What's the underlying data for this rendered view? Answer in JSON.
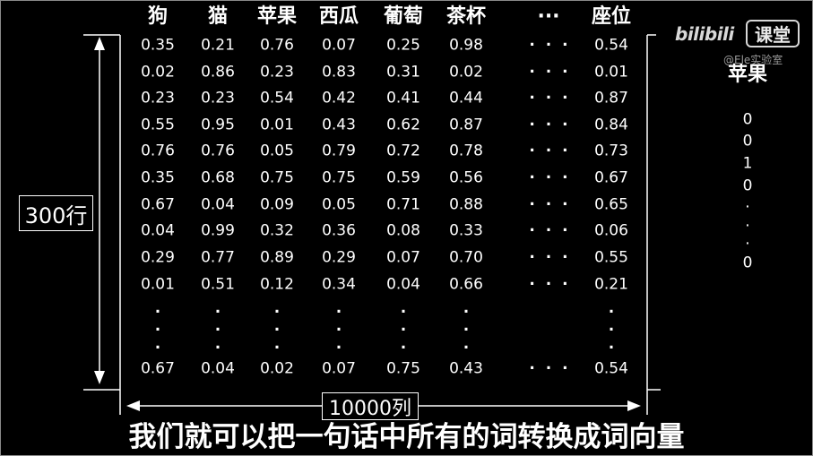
{
  "watermark": {
    "brand": "bilibili",
    "brand_suffix": "课堂",
    "author": "@Ele实验室"
  },
  "matrix": {
    "columns": [
      "狗",
      "猫",
      "苹果",
      "西瓜",
      "葡萄",
      "茶杯",
      "···",
      "座位"
    ],
    "rows": [
      [
        "0.35",
        "0.21",
        "0.76",
        "0.07",
        "0.25",
        "0.98",
        "· · ·",
        "0.54"
      ],
      [
        "0.02",
        "0.86",
        "0.23",
        "0.83",
        "0.31",
        "0.02",
        "· · ·",
        "0.01"
      ],
      [
        "0.23",
        "0.23",
        "0.54",
        "0.42",
        "0.41",
        "0.44",
        "· · ·",
        "0.87"
      ],
      [
        "0.55",
        "0.95",
        "0.01",
        "0.43",
        "0.62",
        "0.87",
        "· · ·",
        "0.84"
      ],
      [
        "0.76",
        "0.76",
        "0.05",
        "0.79",
        "0.72",
        "0.78",
        "· · ·",
        "0.73"
      ],
      [
        "0.35",
        "0.68",
        "0.75",
        "0.75",
        "0.59",
        "0.56",
        "· · ·",
        "0.67"
      ],
      [
        "0.67",
        "0.04",
        "0.09",
        "0.05",
        "0.71",
        "0.88",
        "· · ·",
        "0.65"
      ],
      [
        "0.04",
        "0.99",
        "0.32",
        "0.36",
        "0.08",
        "0.33",
        "· · ·",
        "0.06"
      ],
      [
        "0.29",
        "0.77",
        "0.89",
        "0.29",
        "0.07",
        "0.70",
        "· · ·",
        "0.55"
      ],
      [
        "0.01",
        "0.51",
        "0.12",
        "0.34",
        "0.04",
        "0.66",
        "· · ·",
        "0.21"
      ]
    ],
    "row_ellipsis": "·",
    "last_row": [
      "0.67",
      "0.04",
      "0.02",
      "0.07",
      "0.75",
      "0.43",
      "· · ·",
      "0.54"
    ]
  },
  "dimensions": {
    "rows_label": "300行",
    "cols_label": "10000列"
  },
  "word_vector": {
    "word": "苹果",
    "values": [
      "0",
      "0",
      "1",
      "0",
      "·",
      "·",
      "·",
      "0"
    ]
  },
  "subtitle": "我们就可以把一句话中所有的词转换成词向量"
}
